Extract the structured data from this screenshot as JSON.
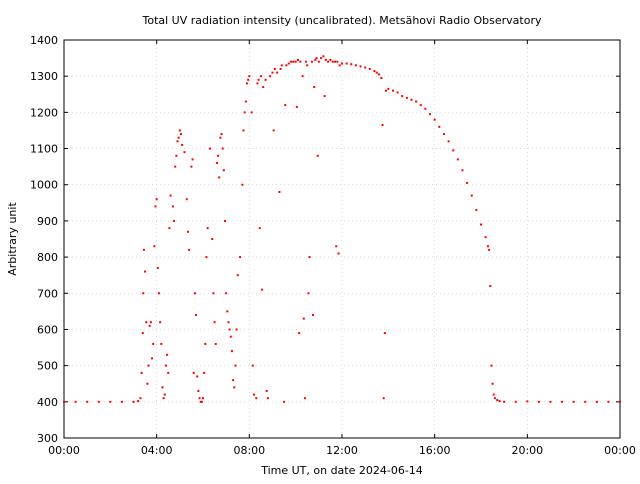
{
  "chart_data": {
    "type": "scatter",
    "title": "Total UV radiation intensity (uncalibrated). Metsähovi Radio Observatory",
    "xlabel": "Time UT, on date 2024-06-14",
    "ylabel": "Arbitrary unit",
    "xlim": [
      0,
      24
    ],
    "ylim": [
      300,
      1400
    ],
    "x_ticks": [
      0,
      4,
      8,
      12,
      16,
      20,
      24
    ],
    "x_tick_labels": [
      "00:00",
      "04:00",
      "08:00",
      "12:00",
      "16:00",
      "20:00",
      "00:00"
    ],
    "y_ticks": [
      300,
      400,
      500,
      600,
      700,
      800,
      900,
      1000,
      1100,
      1200,
      1300,
      1400
    ],
    "grid": true,
    "marker_color": "#ff0000",
    "series": [
      {
        "points": [
          [
            0.0,
            400
          ],
          [
            0.5,
            400
          ],
          [
            1.0,
            400
          ],
          [
            1.5,
            400
          ],
          [
            2.0,
            400
          ],
          [
            2.5,
            400
          ],
          [
            3.0,
            400
          ],
          [
            3.2,
            402
          ],
          [
            3.3,
            410
          ],
          [
            3.35,
            480
          ],
          [
            3.4,
            590
          ],
          [
            3.42,
            700
          ],
          [
            3.45,
            820
          ],
          [
            3.5,
            760
          ],
          [
            3.55,
            620
          ],
          [
            3.6,
            450
          ],
          [
            3.65,
            500
          ],
          [
            3.7,
            610
          ],
          [
            3.75,
            620
          ],
          [
            3.8,
            520
          ],
          [
            3.85,
            560
          ],
          [
            3.9,
            830
          ],
          [
            3.95,
            940
          ],
          [
            4.0,
            960
          ],
          [
            4.05,
            770
          ],
          [
            4.1,
            700
          ],
          [
            4.15,
            620
          ],
          [
            4.2,
            560
          ],
          [
            4.25,
            440
          ],
          [
            4.3,
            410
          ],
          [
            4.35,
            420
          ],
          [
            4.4,
            500
          ],
          [
            4.45,
            530
          ],
          [
            4.5,
            480
          ],
          [
            4.55,
            880
          ],
          [
            4.6,
            970
          ],
          [
            4.7,
            940
          ],
          [
            4.75,
            900
          ],
          [
            4.8,
            1050
          ],
          [
            4.85,
            1080
          ],
          [
            4.9,
            1120
          ],
          [
            4.95,
            1130
          ],
          [
            5.0,
            1150
          ],
          [
            5.05,
            1140
          ],
          [
            5.1,
            1110
          ],
          [
            5.2,
            1090
          ],
          [
            5.3,
            960
          ],
          [
            5.35,
            870
          ],
          [
            5.4,
            820
          ],
          [
            5.5,
            1050
          ],
          [
            5.55,
            1070
          ],
          [
            5.6,
            480
          ],
          [
            5.65,
            700
          ],
          [
            5.7,
            640
          ],
          [
            5.75,
            470
          ],
          [
            5.8,
            430
          ],
          [
            5.85,
            410
          ],
          [
            5.9,
            400
          ],
          [
            5.95,
            400
          ],
          [
            6.0,
            410
          ],
          [
            6.05,
            480
          ],
          [
            6.1,
            560
          ],
          [
            6.15,
            800
          ],
          [
            6.2,
            880
          ],
          [
            6.3,
            1100
          ],
          [
            6.4,
            850
          ],
          [
            6.45,
            700
          ],
          [
            6.5,
            620
          ],
          [
            6.55,
            560
          ],
          [
            6.6,
            1060
          ],
          [
            6.65,
            1080
          ],
          [
            6.7,
            1020
          ],
          [
            6.75,
            1130
          ],
          [
            6.8,
            1140
          ],
          [
            6.85,
            1100
          ],
          [
            6.9,
            1040
          ],
          [
            6.95,
            900
          ],
          [
            7.0,
            700
          ],
          [
            7.05,
            650
          ],
          [
            7.1,
            620
          ],
          [
            7.15,
            600
          ],
          [
            7.2,
            580
          ],
          [
            7.25,
            540
          ],
          [
            7.3,
            460
          ],
          [
            7.35,
            440
          ],
          [
            7.4,
            500
          ],
          [
            7.45,
            600
          ],
          [
            7.5,
            750
          ],
          [
            7.6,
            800
          ],
          [
            7.7,
            1000
          ],
          [
            7.75,
            1150
          ],
          [
            7.8,
            1200
          ],
          [
            7.85,
            1230
          ],
          [
            7.9,
            1280
          ],
          [
            7.95,
            1290
          ],
          [
            8.0,
            1300
          ],
          [
            8.1,
            1200
          ],
          [
            8.15,
            500
          ],
          [
            8.2,
            420
          ],
          [
            8.3,
            410
          ],
          [
            8.35,
            1280
          ],
          [
            8.4,
            1290
          ],
          [
            8.45,
            880
          ],
          [
            8.5,
            1300
          ],
          [
            8.55,
            710
          ],
          [
            8.6,
            1270
          ],
          [
            8.7,
            1290
          ],
          [
            8.75,
            430
          ],
          [
            8.8,
            410
          ],
          [
            8.9,
            1300
          ],
          [
            9.0,
            1310
          ],
          [
            9.05,
            1150
          ],
          [
            9.1,
            1320
          ],
          [
            9.2,
            1310
          ],
          [
            9.3,
            980
          ],
          [
            9.35,
            1320
          ],
          [
            9.4,
            1330
          ],
          [
            9.5,
            400
          ],
          [
            9.55,
            1220
          ],
          [
            9.6,
            1330
          ],
          [
            9.7,
            1335
          ],
          [
            9.8,
            1340
          ],
          [
            9.9,
            1340
          ],
          [
            10.0,
            1340
          ],
          [
            10.05,
            1215
          ],
          [
            10.1,
            1345
          ],
          [
            10.15,
            590
          ],
          [
            10.2,
            1340
          ],
          [
            10.3,
            1300
          ],
          [
            10.35,
            630
          ],
          [
            10.4,
            410
          ],
          [
            10.45,
            1340
          ],
          [
            10.5,
            1330
          ],
          [
            10.55,
            700
          ],
          [
            10.6,
            800
          ],
          [
            10.7,
            1340
          ],
          [
            10.75,
            640
          ],
          [
            10.8,
            1270
          ],
          [
            10.85,
            1345
          ],
          [
            10.9,
            1350
          ],
          [
            10.95,
            1080
          ],
          [
            11.0,
            1340
          ],
          [
            11.1,
            1350
          ],
          [
            11.2,
            1355
          ],
          [
            11.25,
            1245
          ],
          [
            11.3,
            1345
          ],
          [
            11.4,
            1340
          ],
          [
            11.5,
            1345
          ],
          [
            11.6,
            1340
          ],
          [
            11.7,
            1340
          ],
          [
            11.75,
            830
          ],
          [
            11.8,
            1340
          ],
          [
            11.85,
            810
          ],
          [
            11.9,
            1330
          ],
          [
            12.0,
            1335
          ],
          [
            12.2,
            1335
          ],
          [
            12.4,
            1333
          ],
          [
            12.6,
            1330
          ],
          [
            12.8,
            1327
          ],
          [
            13.0,
            1324
          ],
          [
            13.2,
            1320
          ],
          [
            13.4,
            1314
          ],
          [
            13.5,
            1310
          ],
          [
            13.6,
            1305
          ],
          [
            13.7,
            1295
          ],
          [
            13.75,
            1165
          ],
          [
            13.8,
            410
          ],
          [
            13.85,
            590
          ],
          [
            13.9,
            1260
          ],
          [
            14.0,
            1265
          ],
          [
            14.2,
            1260
          ],
          [
            14.4,
            1255
          ],
          [
            14.6,
            1245
          ],
          [
            14.8,
            1240
          ],
          [
            15.0,
            1235
          ],
          [
            15.2,
            1230
          ],
          [
            15.4,
            1220
          ],
          [
            15.6,
            1210
          ],
          [
            15.8,
            1195
          ],
          [
            16.0,
            1180
          ],
          [
            16.2,
            1160
          ],
          [
            16.4,
            1140
          ],
          [
            16.6,
            1120
          ],
          [
            16.8,
            1095
          ],
          [
            17.0,
            1070
          ],
          [
            17.2,
            1040
          ],
          [
            17.4,
            1005
          ],
          [
            17.6,
            970
          ],
          [
            17.8,
            930
          ],
          [
            18.0,
            890
          ],
          [
            18.2,
            855
          ],
          [
            18.3,
            830
          ],
          [
            18.35,
            820
          ],
          [
            18.4,
            720
          ],
          [
            18.45,
            500
          ],
          [
            18.5,
            450
          ],
          [
            18.55,
            420
          ],
          [
            18.6,
            410
          ],
          [
            18.7,
            405
          ],
          [
            18.8,
            402
          ],
          [
            19.0,
            400
          ],
          [
            19.5,
            400
          ],
          [
            20.0,
            401
          ],
          [
            20.5,
            400
          ],
          [
            21.0,
            400
          ],
          [
            21.5,
            400
          ],
          [
            22.0,
            400
          ],
          [
            22.5,
            400
          ],
          [
            23.0,
            400
          ],
          [
            23.5,
            400
          ],
          [
            24.0,
            400
          ]
        ]
      }
    ]
  }
}
